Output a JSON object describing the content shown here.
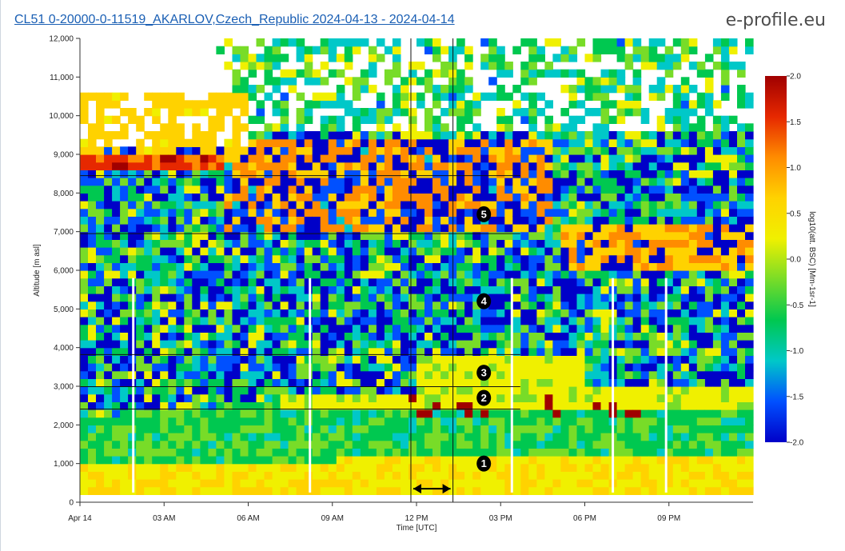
{
  "header": {
    "title": "CL51 0-20000-0-11519_AKARLOV,Czech_Republic 2024-04-13 - 2024-04-14",
    "brand": "e-profile.eu"
  },
  "chart_data": {
    "type": "heatmap",
    "title": "CL51 0-20000-0-11519_AKARLOV,Czech_Republic 2024-04-13 - 2024-04-14",
    "xlabel": "Time [UTC]",
    "ylabel": "Altitude [m asl]",
    "x_tick_labels": [
      "Apr 14",
      "03 AM",
      "06 AM",
      "09 AM",
      "12 PM",
      "03 PM",
      "06 PM",
      "09 PM"
    ],
    "x_tick_hours": [
      0,
      3,
      6,
      9,
      12,
      15,
      18,
      21
    ],
    "xlim_hours": [
      0,
      24
    ],
    "y_ticks": [
      0,
      1000,
      2000,
      3000,
      4000,
      5000,
      6000,
      7000,
      8000,
      9000,
      10000,
      11000,
      12000
    ],
    "y_tick_labels": [
      "0",
      "1,000",
      "2,000",
      "3,000",
      "4,000",
      "5,000",
      "6,000",
      "7,000",
      "8,000",
      "9,000",
      "10,000",
      "11,000",
      "12,000"
    ],
    "ylim": [
      0,
      12000
    ],
    "colorbar": {
      "label": "log10(att. BSC) [Mm-1sr-1]",
      "range": [
        -2.0,
        2.0
      ],
      "ticks": [
        2.0,
        1.5,
        1.0,
        0.5,
        0.0,
        -0.5,
        -1.0,
        -1.5,
        -2.0
      ],
      "tick_labels": [
        "2.0",
        "1.5",
        "1.0",
        "0.5",
        "0.0",
        "-0.5",
        "-1.0",
        "-1.5",
        "-2.0"
      ],
      "colors": [
        "#0000c8",
        "#0050ff",
        "#00c8c8",
        "#00c850",
        "#78dc28",
        "#f0f000",
        "#ffd200",
        "#ff8c00",
        "#e62800",
        "#a00000"
      ]
    },
    "annotations": {
      "horizontal_lines_m": [
        8450,
        6950,
        3820,
        2990,
        2410
      ],
      "horizontal_line_span_hours": [
        0,
        15.7
      ],
      "vertical_lines_hours": [
        11.8,
        13.3
      ],
      "arrow_span_hours": [
        11.8,
        13.3
      ],
      "arrow_altitude_m": 350,
      "zone_labels": [
        {
          "label": "1",
          "hour": 14.4,
          "alt": 1000
        },
        {
          "label": "2",
          "hour": 14.4,
          "alt": 2700
        },
        {
          "label": "3",
          "hour": 14.4,
          "alt": 3350
        },
        {
          "label": "4",
          "hour": 14.4,
          "alt": 5200
        },
        {
          "label": "5",
          "hour": 14.4,
          "alt": 7450
        }
      ]
    },
    "data_gaps_hours": [
      1.9,
      8.2,
      15.4,
      20.9,
      19.0
    ],
    "features": {
      "surface_layer_top_m": 1000,
      "boundary_layer_top_morning_m": 2900,
      "cloud_layer_morning_m": [
        8500,
        9000
      ],
      "cloud_layer_afternoon_m": [
        2300,
        3000
      ],
      "high_clouds_evening_m": [
        6000,
        7300
      ]
    }
  }
}
